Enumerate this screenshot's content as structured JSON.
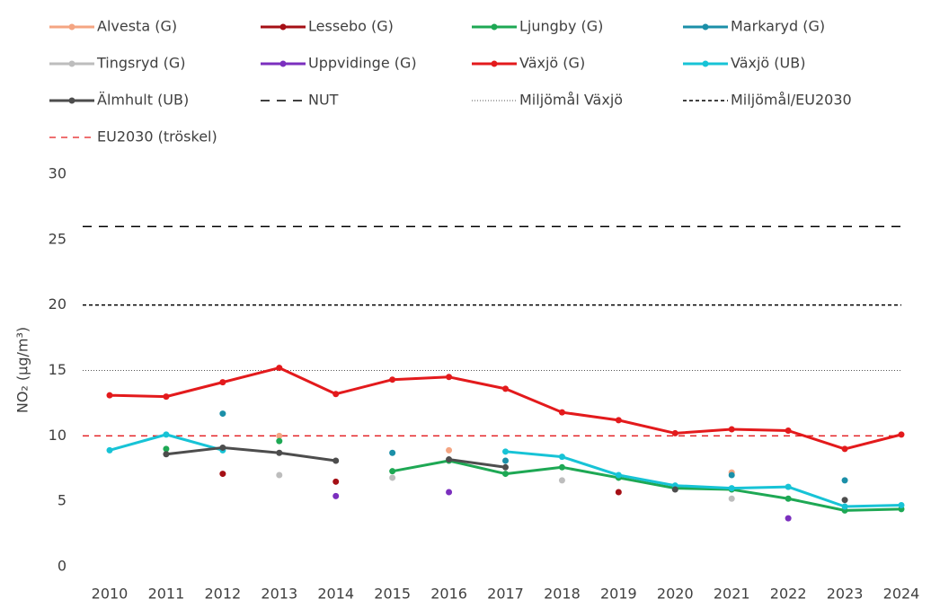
{
  "chart_data": {
    "type": "line",
    "y_label": "NO₂ (µg/m³)",
    "categories": [
      "2010",
      "2011",
      "2012",
      "2013",
      "2014",
      "2015",
      "2016",
      "2017",
      "2018",
      "2019",
      "2020",
      "2021",
      "2022",
      "2023",
      "2024"
    ],
    "series": [
      {
        "name": "Alvesta (G)",
        "color": "#f4a582",
        "values": [
          null,
          null,
          null,
          10.0,
          null,
          null,
          8.9,
          null,
          null,
          null,
          null,
          7.2,
          null,
          null,
          null
        ]
      },
      {
        "name": "Lessebo (G)",
        "color": "#a50f15",
        "values": [
          null,
          null,
          7.1,
          null,
          6.5,
          null,
          null,
          null,
          null,
          5.7,
          null,
          null,
          null,
          null,
          null
        ]
      },
      {
        "name": "Ljungby (G)",
        "color": "#1ea854",
        "values": [
          null,
          9.0,
          null,
          9.6,
          null,
          7.3,
          8.1,
          7.1,
          7.6,
          6.8,
          6.0,
          5.9,
          5.2,
          4.3,
          4.4
        ]
      },
      {
        "name": "Markaryd (G)",
        "color": "#1b8fa8",
        "values": [
          null,
          null,
          11.7,
          null,
          null,
          8.7,
          null,
          8.1,
          null,
          null,
          null,
          7.0,
          null,
          6.6,
          null
        ]
      },
      {
        "name": "Tingsryd (G)",
        "color": "#bdbdbd",
        "values": [
          null,
          null,
          null,
          7.0,
          null,
          6.8,
          null,
          null,
          6.6,
          null,
          null,
          5.2,
          null,
          null,
          null
        ]
      },
      {
        "name": "Uppvidinge (G)",
        "color": "#7b2fbe",
        "values": [
          null,
          null,
          null,
          null,
          5.4,
          null,
          5.7,
          null,
          null,
          null,
          null,
          null,
          3.7,
          null,
          null
        ]
      },
      {
        "name": "Växjö (G)",
        "color": "#e31a1c",
        "values": [
          13.1,
          13.0,
          14.1,
          15.2,
          13.2,
          14.3,
          14.5,
          13.6,
          11.8,
          11.2,
          10.2,
          10.5,
          10.4,
          9.0,
          10.1
        ]
      },
      {
        "name": "Växjö (UB)",
        "color": "#17c3d6",
        "values": [
          8.9,
          10.1,
          8.9,
          null,
          null,
          null,
          null,
          8.8,
          8.4,
          7.0,
          6.2,
          6.0,
          6.1,
          4.6,
          4.7
        ]
      },
      {
        "name": "Älmhult (UB)",
        "color": "#4d4d4d",
        "values": [
          null,
          8.6,
          9.1,
          8.7,
          8.1,
          null,
          8.2,
          7.6,
          null,
          null,
          5.9,
          null,
          null,
          5.1,
          null
        ]
      }
    ],
    "reference_lines": [
      {
        "name": "NUT",
        "color": "#000000",
        "value": 26,
        "dash": "10 8",
        "width": 1.5
      },
      {
        "name": "Miljömål Växjö",
        "color": "#555555",
        "value": 15,
        "dash": "1 2",
        "width": 1
      },
      {
        "name": "Miljömål/EU2030",
        "color": "#000000",
        "value": 20,
        "dash": "4 3",
        "width": 1.5
      },
      {
        "name": "EU2030 (tröskel)",
        "color": "#e31a1c",
        "value": 10,
        "dash": "7 6",
        "width": 1.3
      }
    ],
    "ylim": [
      0,
      30
    ],
    "yticks": [
      0,
      5,
      10,
      15,
      20,
      25,
      30
    ],
    "grid": false
  }
}
